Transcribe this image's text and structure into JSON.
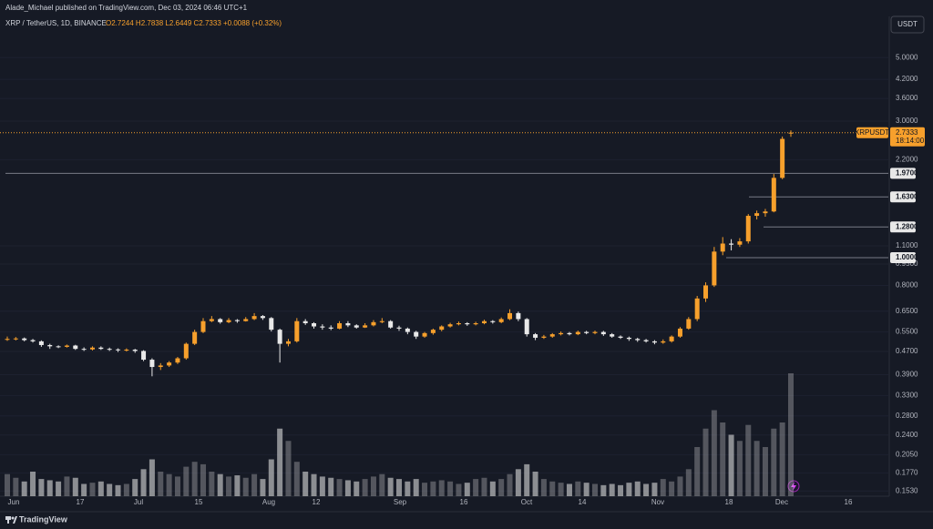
{
  "header": {
    "publisher": "Alade_Michael published on TradingView.com, Dec 03, 2024 06:46 UTC+1",
    "symbol": "XRP / TetherUS, 1D, BINANCE",
    "ohlc": "O2.7244 H2.7838 L2.6449 C2.7333 +0.0088 (+0.32%)",
    "currency": "USDT"
  },
  "footer": {
    "brand": "TradingView"
  },
  "chart_data": {
    "type": "candlestick",
    "log_scale": true,
    "grid": true,
    "up_color": "#f7a02c",
    "down_color": "#e8e8e8",
    "ylim": [
      0.1467,
      6.15
    ],
    "yticks": [
      {
        "value": 5,
        "label": "5.0000"
      },
      {
        "value": 4.2,
        "label": "4.2000"
      },
      {
        "value": 3.6,
        "label": "3.6000"
      },
      {
        "value": 3,
        "label": "3.0000"
      },
      {
        "value": 2.2,
        "label": "2.2000"
      },
      {
        "value": 1.1,
        "label": "1.1000"
      },
      {
        "value": 0.95,
        "label": "0.9500"
      },
      {
        "value": 0.8,
        "label": "0.8000"
      },
      {
        "value": 0.65,
        "label": "0.6500"
      },
      {
        "value": 0.55,
        "label": "0.5500"
      },
      {
        "value": 0.47,
        "label": "0.4700"
      },
      {
        "value": 0.39,
        "label": "0.3900"
      },
      {
        "value": 0.33,
        "label": "0.3300"
      },
      {
        "value": 0.28,
        "label": "0.2800"
      },
      {
        "value": 0.24,
        "label": "0.2400"
      },
      {
        "value": 0.205,
        "label": "0.2050"
      },
      {
        "value": 0.177,
        "label": "0.1770"
      },
      {
        "value": 0.153,
        "label": "0.1530"
      }
    ],
    "x_labels": [
      "Jun",
      "17",
      "Jul",
      "15",
      "Aug",
      "12",
      "Sep",
      "16",
      "Oct",
      "14",
      "Nov",
      "18",
      "Dec",
      "16"
    ],
    "levels": [
      {
        "value": 1.97,
        "label": "1.9700"
      },
      {
        "value": 1.63,
        "label": "1.6300"
      },
      {
        "value": 1.28,
        "label": "1.2800"
      },
      {
        "value": 1,
        "label": "1.0000"
      }
    ],
    "last_price": {
      "name": "XRPUSDT",
      "value": 2.7333,
      "label": "2.7333",
      "countdown": "18:14:00"
    },
    "open": [
      0.518,
      0.52,
      0.522,
      0.515,
      0.51,
      0.495,
      0.49,
      0.488,
      0.493,
      0.48,
      0.478,
      0.485,
      0.48,
      0.478,
      0.475,
      0.477,
      0.472,
      0.44,
      0.415,
      0.42,
      0.43,
      0.445,
      0.5,
      0.55,
      0.6,
      0.61,
      0.595,
      0.605,
      0.6,
      0.61,
      0.625,
      0.615,
      0.56,
      0.5,
      0.51,
      0.6,
      0.59,
      0.575,
      0.57,
      0.565,
      0.59,
      0.58,
      0.57,
      0.58,
      0.595,
      0.6,
      0.57,
      0.565,
      0.55,
      0.53,
      0.545,
      0.56,
      0.575,
      0.585,
      0.59,
      0.585,
      0.59,
      0.6,
      0.595,
      0.61,
      0.64,
      0.61,
      0.54,
      0.525,
      0.53,
      0.54,
      0.545,
      0.54,
      0.55,
      0.545,
      0.55,
      0.54,
      0.53,
      0.525,
      0.52,
      0.515,
      0.51,
      0.505,
      0.51,
      0.53,
      0.565,
      0.61,
      0.72,
      0.8,
      1.05,
      1.12,
      1.11,
      1.14,
      1.4,
      1.43,
      1.45,
      1.9,
      2.7244
    ],
    "high": [
      0.53,
      0.528,
      0.526,
      0.52,
      0.514,
      0.5,
      0.494,
      0.497,
      0.496,
      0.486,
      0.49,
      0.49,
      0.485,
      0.482,
      0.482,
      0.48,
      0.475,
      0.445,
      0.428,
      0.435,
      0.45,
      0.505,
      0.56,
      0.615,
      0.625,
      0.615,
      0.615,
      0.61,
      0.62,
      0.64,
      0.63,
      0.62,
      0.565,
      0.52,
      0.615,
      0.61,
      0.595,
      0.585,
      0.58,
      0.6,
      0.6,
      0.585,
      0.59,
      0.605,
      0.615,
      0.605,
      0.578,
      0.57,
      0.555,
      0.55,
      0.565,
      0.58,
      0.592,
      0.598,
      0.595,
      0.597,
      0.607,
      0.605,
      0.618,
      0.66,
      0.648,
      0.615,
      0.545,
      0.537,
      0.545,
      0.552,
      0.55,
      0.556,
      0.555,
      0.556,
      0.555,
      0.545,
      0.535,
      0.53,
      0.525,
      0.52,
      0.515,
      0.518,
      0.535,
      0.572,
      0.62,
      0.735,
      0.82,
      1.09,
      1.18,
      1.16,
      1.17,
      1.42,
      1.46,
      1.48,
      1.96,
      2.65,
      2.7838
    ],
    "low": [
      0.512,
      0.514,
      0.51,
      0.505,
      0.488,
      0.48,
      0.483,
      0.485,
      0.476,
      0.472,
      0.474,
      0.476,
      0.472,
      0.468,
      0.47,
      0.465,
      0.435,
      0.385,
      0.405,
      0.415,
      0.425,
      0.44,
      0.495,
      0.545,
      0.595,
      0.588,
      0.59,
      0.592,
      0.598,
      0.605,
      0.606,
      0.552,
      0.43,
      0.49,
      0.505,
      0.582,
      0.565,
      0.56,
      0.558,
      0.562,
      0.572,
      0.565,
      0.568,
      0.575,
      0.59,
      0.565,
      0.555,
      0.54,
      0.52,
      0.525,
      0.538,
      0.553,
      0.57,
      0.58,
      0.578,
      0.58,
      0.585,
      0.588,
      0.59,
      0.605,
      0.6,
      0.53,
      0.515,
      0.52,
      0.525,
      0.535,
      0.535,
      0.536,
      0.54,
      0.54,
      0.533,
      0.525,
      0.52,
      0.512,
      0.508,
      0.505,
      0.498,
      0.5,
      0.505,
      0.525,
      0.56,
      0.6,
      0.7,
      0.79,
      1.02,
      1.06,
      1.09,
      1.12,
      1.36,
      1.39,
      1.44,
      1.88,
      2.6449
    ],
    "close": [
      0.52,
      0.522,
      0.515,
      0.51,
      0.495,
      0.49,
      0.488,
      0.493,
      0.48,
      0.478,
      0.485,
      0.48,
      0.478,
      0.475,
      0.477,
      0.472,
      0.44,
      0.415,
      0.42,
      0.43,
      0.445,
      0.5,
      0.55,
      0.6,
      0.61,
      0.595,
      0.605,
      0.6,
      0.61,
      0.625,
      0.615,
      0.56,
      0.5,
      0.51,
      0.6,
      0.59,
      0.575,
      0.57,
      0.565,
      0.59,
      0.58,
      0.57,
      0.58,
      0.595,
      0.6,
      0.57,
      0.565,
      0.55,
      0.53,
      0.545,
      0.56,
      0.575,
      0.585,
      0.59,
      0.585,
      0.59,
      0.6,
      0.595,
      0.61,
      0.64,
      0.61,
      0.54,
      0.525,
      0.53,
      0.54,
      0.545,
      0.54,
      0.55,
      0.545,
      0.55,
      0.54,
      0.53,
      0.525,
      0.52,
      0.515,
      0.51,
      0.505,
      0.51,
      0.53,
      0.565,
      0.61,
      0.72,
      0.8,
      1.05,
      1.12,
      1.11,
      1.14,
      1.4,
      1.43,
      1.45,
      1.9,
      2.6,
      2.7333
    ],
    "volume": [
      18,
      15,
      12,
      20,
      14,
      13,
      12,
      16,
      15,
      10,
      11,
      12,
      10,
      9,
      10,
      14,
      22,
      30,
      20,
      18,
      16,
      24,
      28,
      26,
      20,
      18,
      16,
      17,
      15,
      18,
      14,
      30,
      55,
      45,
      28,
      20,
      18,
      16,
      15,
      14,
      13,
      12,
      14,
      16,
      18,
      15,
      14,
      12,
      14,
      11,
      12,
      13,
      12,
      10,
      11,
      14,
      15,
      12,
      14,
      18,
      22,
      26,
      20,
      14,
      12,
      11,
      10,
      12,
      11,
      10,
      9,
      10,
      9,
      11,
      12,
      10,
      11,
      14,
      12,
      16,
      22,
      40,
      55,
      70,
      60,
      50,
      45,
      58,
      45,
      40,
      55,
      60,
      100
    ]
  }
}
